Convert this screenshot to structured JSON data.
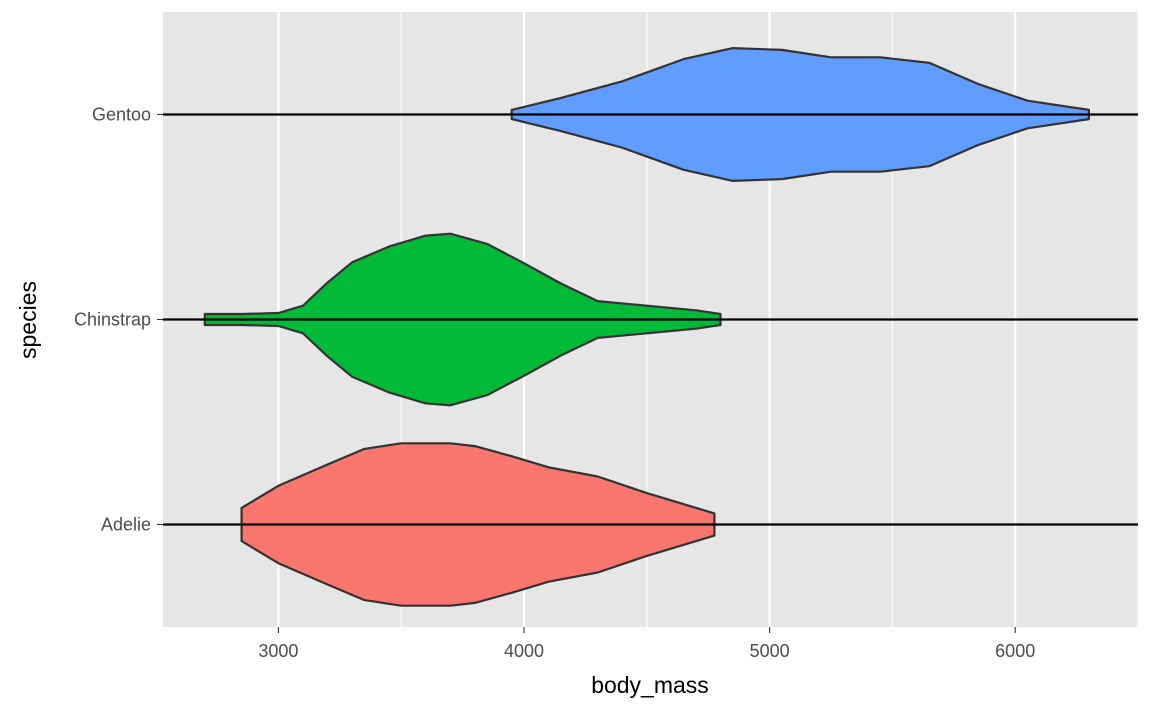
{
  "chart_data": {
    "type": "violin",
    "orientation": "horizontal",
    "xlabel": "body_mass",
    "ylabel": "species",
    "xlim": [
      2530,
      6500
    ],
    "x_ticks": [
      3000,
      4000,
      5000,
      6000
    ],
    "x_tick_labels": [
      "3000",
      "4000",
      "5000",
      "6000"
    ],
    "grid": true,
    "legend": "none",
    "colors": {
      "panel_background": "#e6e6e6",
      "grid": "#ffffff",
      "outline": "#333333",
      "reference_line": "#000000"
    },
    "categories": [
      "Adelie",
      "Chinstrap",
      "Gentoo"
    ],
    "series": [
      {
        "category": "Adelie",
        "fill": "#F8766D",
        "min": 2850,
        "max": 4775,
        "density": [
          [
            2850,
            0.18
          ],
          [
            3000,
            0.42
          ],
          [
            3200,
            0.65
          ],
          [
            3350,
            0.82
          ],
          [
            3500,
            0.88
          ],
          [
            3700,
            0.88
          ],
          [
            3800,
            0.85
          ],
          [
            3950,
            0.74
          ],
          [
            4100,
            0.62
          ],
          [
            4300,
            0.52
          ],
          [
            4500,
            0.34
          ],
          [
            4775,
            0.12
          ]
        ]
      },
      {
        "category": "Chinstrap",
        "fill": "#00BA38",
        "min": 2700,
        "max": 4800,
        "density": [
          [
            2700,
            0.06
          ],
          [
            2850,
            0.06
          ],
          [
            3000,
            0.07
          ],
          [
            3100,
            0.15
          ],
          [
            3200,
            0.4
          ],
          [
            3300,
            0.62
          ],
          [
            3450,
            0.79
          ],
          [
            3600,
            0.91
          ],
          [
            3700,
            0.93
          ],
          [
            3850,
            0.82
          ],
          [
            4000,
            0.61
          ],
          [
            4150,
            0.39
          ],
          [
            4300,
            0.2
          ],
          [
            4500,
            0.15
          ],
          [
            4700,
            0.1
          ],
          [
            4800,
            0.06
          ]
        ]
      },
      {
        "category": "Gentoo",
        "fill": "#619CFF",
        "min": 3950,
        "max": 6300,
        "density": [
          [
            3950,
            0.05
          ],
          [
            4150,
            0.18
          ],
          [
            4400,
            0.36
          ],
          [
            4650,
            0.6
          ],
          [
            4850,
            0.72
          ],
          [
            5050,
            0.7
          ],
          [
            5250,
            0.62
          ],
          [
            5450,
            0.62
          ],
          [
            5650,
            0.56
          ],
          [
            5850,
            0.33
          ],
          [
            6050,
            0.15
          ],
          [
            6300,
            0.05
          ]
        ]
      }
    ]
  }
}
